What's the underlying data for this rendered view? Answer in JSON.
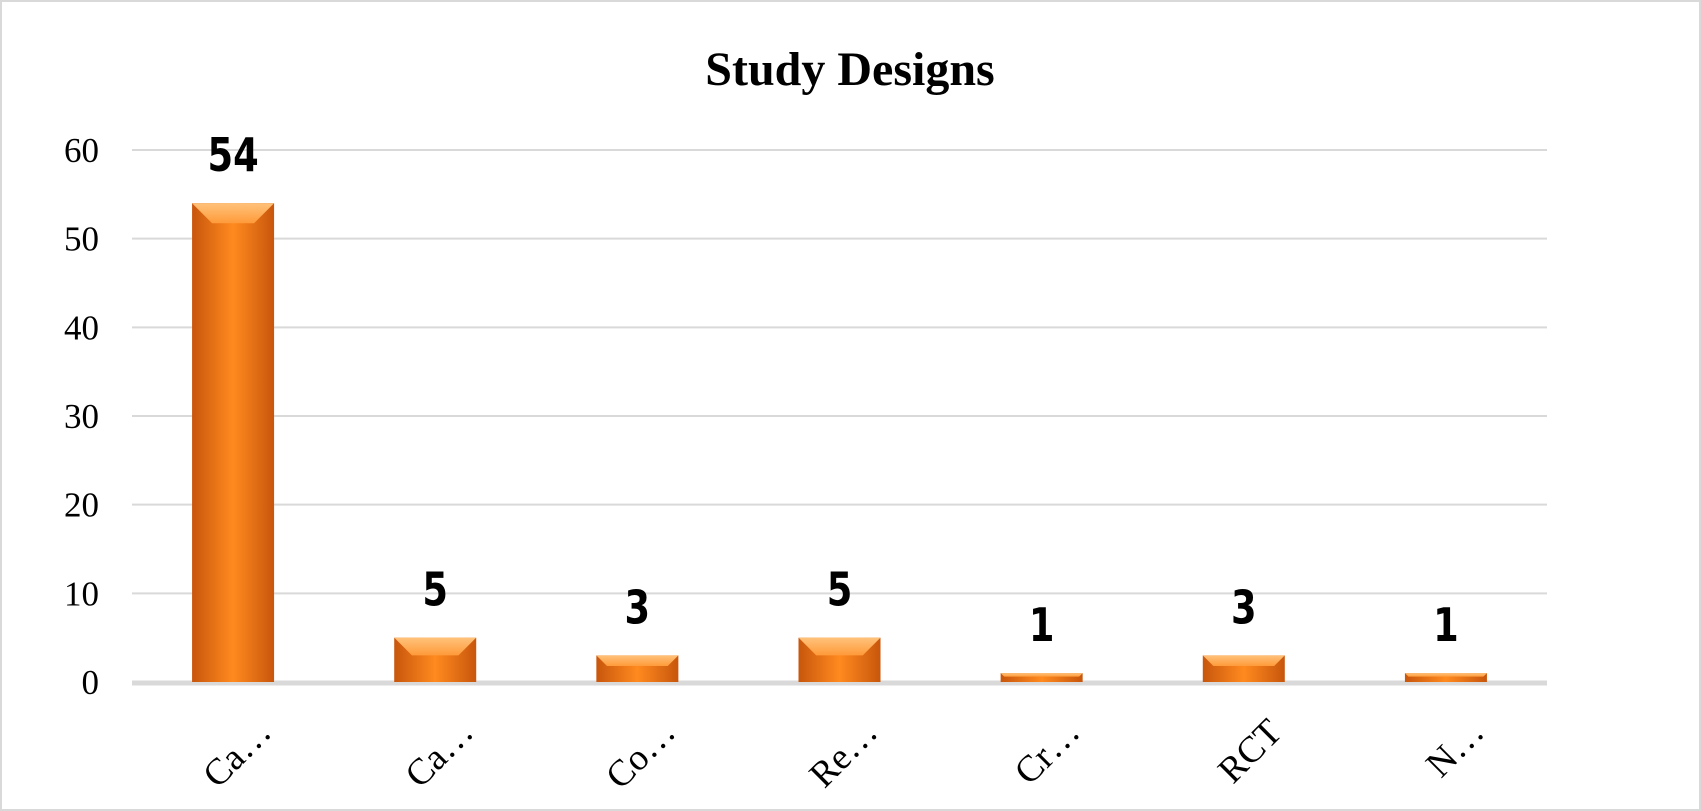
{
  "chart_data": {
    "type": "bar",
    "title": "Study Designs",
    "xlabel": "",
    "ylabel": "",
    "categories": [
      "Ca…",
      "Ca…",
      "Co…",
      "Re…",
      "Cr…",
      "RCT",
      "N…"
    ],
    "values": [
      54,
      5,
      3,
      5,
      1,
      3,
      1
    ],
    "data_labels": [
      "54",
      "5",
      "3",
      "5",
      "1",
      "3",
      "1"
    ],
    "ylim": [
      0,
      60
    ],
    "yticks": [
      0,
      10,
      20,
      30,
      40,
      50,
      60
    ],
    "ytick_labels": [
      "0",
      "10",
      "20",
      "30",
      "40",
      "50",
      "60"
    ],
    "grid": true,
    "legend": "none",
    "bar_color": "#f07d1a",
    "bar_color_dark": "#c8560c",
    "bar_color_light": "#ffab52",
    "grid_color": "#d9d9d9"
  }
}
